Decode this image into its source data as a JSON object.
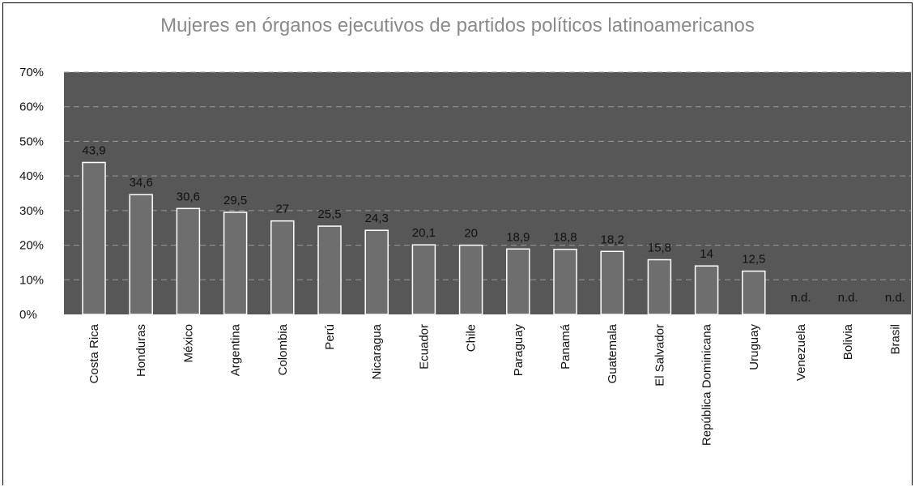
{
  "chart_data": {
    "type": "bar",
    "title": "Mujeres en órganos ejecutivos de partidos políticos latinoamericanos",
    "xlabel": "",
    "ylabel": "",
    "ylim": [
      0,
      70
    ],
    "yticks": [
      "0%",
      "10%",
      "20%",
      "30%",
      "40%",
      "50%",
      "60%",
      "70%"
    ],
    "categories": [
      "Costa Rica",
      "Honduras",
      "México",
      "Argentina",
      "Colombia",
      "Perú",
      "Nicaragua",
      "Ecuador",
      "Chile",
      "Paraguay",
      "Panamá",
      "Guatemala",
      "El Salvador",
      "República Dominicana",
      "Uruguay",
      "Venezuela",
      "Bolivia",
      "Brasil"
    ],
    "values": [
      43.9,
      34.6,
      30.6,
      29.5,
      27,
      25.5,
      24.3,
      20.1,
      20,
      18.9,
      18.8,
      18.2,
      15.8,
      14,
      12.5,
      null,
      null,
      null
    ],
    "value_labels": [
      "43,9",
      "34,6",
      "30,6",
      "29,5",
      "27",
      "25,5",
      "24,3",
      "20,1",
      "20",
      "18,9",
      "18,8",
      "18,2",
      "15,8",
      "14",
      "12,5",
      "n.d.",
      "n.d.",
      "n.d."
    ],
    "grid": true,
    "colors": {
      "plot_background": "#575757",
      "bar_fill": "#6e6e6e",
      "bar_stroke": "#ffffff",
      "grid": "#9a9a9a",
      "title": "#8a8a8a"
    }
  }
}
